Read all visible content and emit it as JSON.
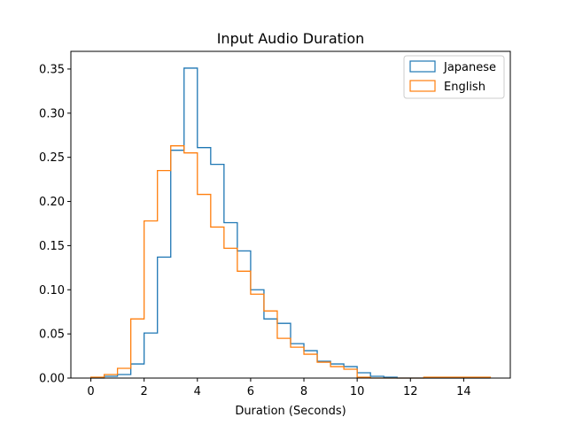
{
  "chart_data": {
    "type": "histogram",
    "title": "Input Audio Duration",
    "xlabel": "Duration (Seconds)",
    "ylabel": "",
    "xlim": [
      -0.75,
      15.75
    ],
    "ylim": [
      0,
      0.37
    ],
    "xticks": [
      0,
      2,
      4,
      6,
      8,
      10,
      12,
      14
    ],
    "yticks": [
      0.0,
      0.05,
      0.1,
      0.15,
      0.2,
      0.25,
      0.3,
      0.35
    ],
    "xtick_labels": [
      "0",
      "2",
      "4",
      "6",
      "8",
      "10",
      "12",
      "14"
    ],
    "ytick_labels": [
      "0.00",
      "0.05",
      "0.10",
      "0.15",
      "0.20",
      "0.25",
      "0.30",
      "0.35"
    ],
    "bin_edges": [
      0,
      0.5,
      1,
      1.5,
      2,
      2.5,
      3,
      3.5,
      4,
      4.5,
      5,
      5.5,
      6,
      6.5,
      7,
      7.5,
      8,
      8.5,
      9,
      9.5,
      10,
      10.5,
      11,
      11.5,
      12,
      12.5,
      13,
      13.5,
      14,
      14.5,
      15
    ],
    "series": [
      {
        "name": "Japanese",
        "color": "#1f77b4",
        "values": [
          0.0,
          0.002,
          0.004,
          0.016,
          0.051,
          0.137,
          0.258,
          0.351,
          0.261,
          0.242,
          0.176,
          0.144,
          0.1,
          0.067,
          0.062,
          0.039,
          0.031,
          0.019,
          0.016,
          0.013,
          0.006,
          0.002,
          0.001,
          0.0,
          0.0,
          0.0,
          0.0,
          0.0,
          0.0,
          0.0
        ]
      },
      {
        "name": "English",
        "color": "#ff7f0e",
        "values": [
          0.001,
          0.004,
          0.011,
          0.067,
          0.178,
          0.235,
          0.263,
          0.255,
          0.208,
          0.171,
          0.147,
          0.121,
          0.095,
          0.076,
          0.045,
          0.035,
          0.027,
          0.018,
          0.013,
          0.01,
          0.001,
          0.0,
          0.0,
          0.0,
          0.0,
          0.001,
          0.001,
          0.001,
          0.001,
          0.001
        ]
      }
    ],
    "legend_position": "top-right"
  }
}
